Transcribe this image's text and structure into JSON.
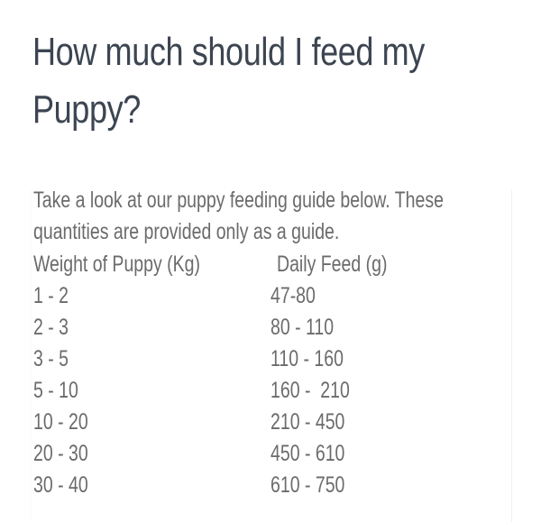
{
  "title": "How much should I feed my Puppy?",
  "intro": "Take a look at our puppy feeding guide below. These quantities are provided only as a guide.",
  "table": {
    "headers": [
      "Weight of Puppy (Kg)",
      "Daily Feed (g)"
    ],
    "rows": [
      [
        "1 - 2",
        "47-80"
      ],
      [
        "2 - 3",
        "80 - 110"
      ],
      [
        "3 - 5",
        "110 - 160"
      ],
      [
        "5 - 10",
        "160 -  210"
      ],
      [
        "10 - 20",
        "210 - 450"
      ],
      [
        "20 - 30",
        "450 - 610"
      ],
      [
        "30 - 40",
        "610 - 750"
      ]
    ]
  }
}
